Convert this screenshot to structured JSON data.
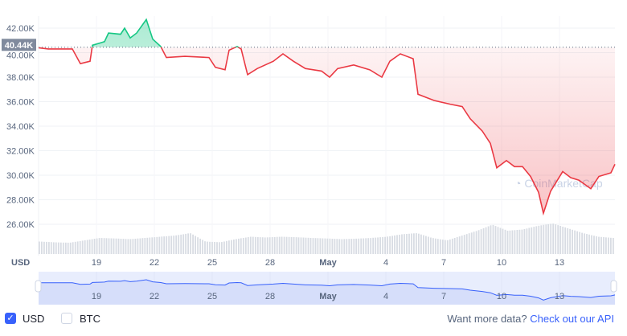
{
  "chart_data": {
    "type": "line",
    "currency_label": "USD",
    "y_ticks": [
      "42.00K",
      "40.00K",
      "38.00K",
      "36.00K",
      "34.00K",
      "32.00K",
      "30.00K",
      "28.00K",
      "26.00K"
    ],
    "ylim": [
      25000,
      43500
    ],
    "x_ticks": [
      "19",
      "22",
      "25",
      "28",
      "May",
      "4",
      "7",
      "10",
      "13"
    ],
    "x_tick_dates": [
      "2022-04-19",
      "2022-04-22",
      "2022-04-25",
      "2022-04-28",
      "2022-05-01",
      "2022-05-04",
      "2022-05-07",
      "2022-05-10",
      "2022-05-13"
    ],
    "baseline": {
      "value": 40440,
      "label": "40.44K"
    },
    "colors": {
      "up": "#16c784",
      "down": "#ea3943",
      "navigator": "#3861fb"
    },
    "grid": true,
    "watermark": "CoinMarketCap",
    "series": [
      {
        "points": [
          [
            "2022-04-16T00",
            40.4
          ],
          [
            "2022-04-16T12",
            40.3
          ],
          [
            "2022-04-17T18",
            40.3
          ],
          [
            "2022-04-18T04",
            39.1
          ],
          [
            "2022-04-18T16",
            39.3
          ],
          [
            "2022-04-18T19",
            40.6
          ],
          [
            "2022-04-19T10",
            40.9
          ],
          [
            "2022-04-19T15",
            41.6
          ],
          [
            "2022-04-20T06",
            41.5
          ],
          [
            "2022-04-20T11",
            42.0
          ],
          [
            "2022-04-20T18",
            41.2
          ],
          [
            "2022-04-21T02",
            41.6
          ],
          [
            "2022-04-21T14",
            42.7
          ],
          [
            "2022-04-21T22",
            41.1
          ],
          [
            "2022-04-22T08",
            40.5
          ],
          [
            "2022-04-22T15",
            39.6
          ],
          [
            "2022-04-23T14",
            39.7
          ],
          [
            "2022-04-24T20",
            39.6
          ],
          [
            "2022-04-25T04",
            38.8
          ],
          [
            "2022-04-25T16",
            38.6
          ],
          [
            "2022-04-25T21",
            40.2
          ],
          [
            "2022-04-26T07",
            40.5
          ],
          [
            "2022-04-26T12",
            40.3
          ],
          [
            "2022-04-26T20",
            38.2
          ],
          [
            "2022-04-27T08",
            38.7
          ],
          [
            "2022-04-28T04",
            39.3
          ],
          [
            "2022-04-28T16",
            39.9
          ],
          [
            "2022-04-29T05",
            39.3
          ],
          [
            "2022-04-29T20",
            38.7
          ],
          [
            "2022-04-30T16",
            38.5
          ],
          [
            "2022-05-01T02",
            38.0
          ],
          [
            "2022-05-01T12",
            38.7
          ],
          [
            "2022-05-02T08",
            39.0
          ],
          [
            "2022-05-03T04",
            38.6
          ],
          [
            "2022-05-03T19",
            38.0
          ],
          [
            "2022-05-04T05",
            39.3
          ],
          [
            "2022-05-04T18",
            39.9
          ],
          [
            "2022-05-05T10",
            39.5
          ],
          [
            "2022-05-05T16",
            36.6
          ],
          [
            "2022-05-06T12",
            36.1
          ],
          [
            "2022-05-07T08",
            35.8
          ],
          [
            "2022-05-07T23",
            35.6
          ],
          [
            "2022-05-08T09",
            34.6
          ],
          [
            "2022-05-09T00",
            33.6
          ],
          [
            "2022-05-09T10",
            32.6
          ],
          [
            "2022-05-09T18",
            30.6
          ],
          [
            "2022-05-10T06",
            31.2
          ],
          [
            "2022-05-10T16",
            30.7
          ],
          [
            "2022-05-11T02",
            30.7
          ],
          [
            "2022-05-11T12",
            29.9
          ],
          [
            "2022-05-11T22",
            28.6
          ],
          [
            "2022-05-12T04",
            26.9
          ],
          [
            "2022-05-12T13",
            28.7
          ],
          [
            "2022-05-13T04",
            30.3
          ],
          [
            "2022-05-13T14",
            29.8
          ],
          [
            "2022-05-14T00",
            29.6
          ],
          [
            "2022-05-14T15",
            28.9
          ],
          [
            "2022-05-15T01",
            29.9
          ],
          [
            "2022-05-15T16",
            30.2
          ],
          [
            "2022-05-15T21",
            30.9
          ]
        ]
      }
    ],
    "volume_relative": [
      0.25,
      0.22,
      0.2,
      0.3,
      0.4,
      0.38,
      0.35,
      0.4,
      0.45,
      0.5,
      0.6,
      0.25,
      0.22,
      0.35,
      0.45,
      0.42,
      0.45,
      0.43,
      0.4,
      0.38,
      0.35,
      0.37,
      0.4,
      0.45,
      0.55,
      0.6,
      0.4,
      0.3,
      0.5,
      0.7,
      0.95,
      0.7,
      0.75,
      0.9,
      1.0,
      0.8,
      0.6,
      0.45,
      0.4
    ]
  },
  "footer": {
    "usd_label": "USD",
    "btc_label": "BTC",
    "api_prompt": "Want more data?",
    "api_link": "Check out our API"
  }
}
